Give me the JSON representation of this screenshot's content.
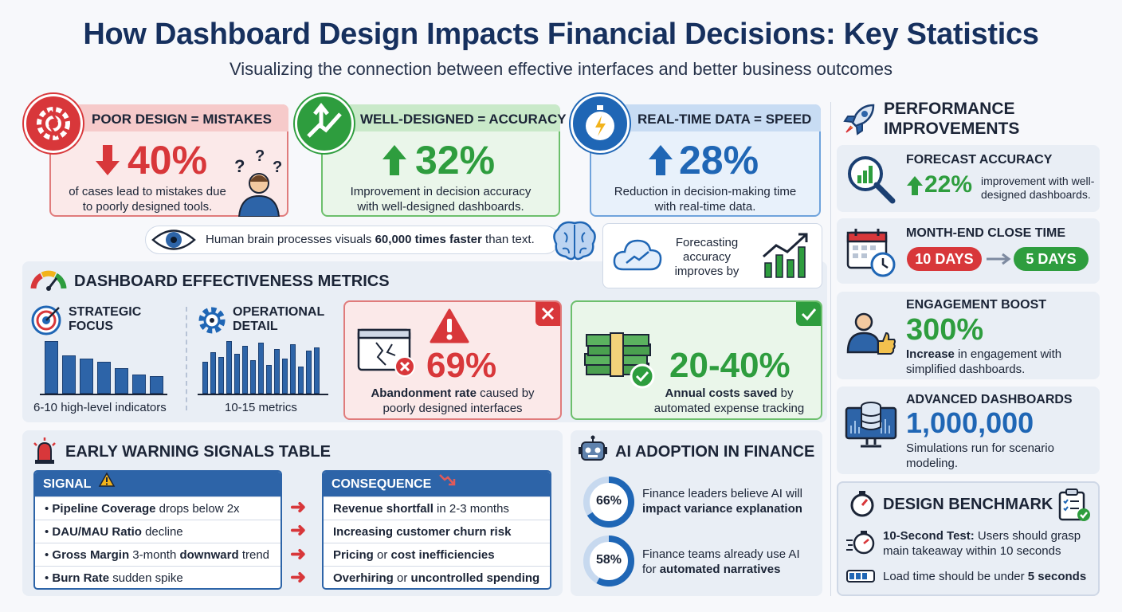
{
  "header": {
    "title": "How Dashboard Design Impacts Financial Decisions: Key Statistics",
    "subtitle": "Visualizing the connection between effective interfaces and better business outcomes"
  },
  "top_cards": [
    {
      "title": "POOR DESIGN = MISTAKES",
      "stat": "40%",
      "direction": "down",
      "text1": "of cases lead to mistakes due",
      "text2": "to poorly designed tools."
    },
    {
      "title": "WELL-DESIGNED = ACCURACY",
      "stat": "32%",
      "direction": "up",
      "text1": "Improvement in decision accuracy",
      "text2": "with well-designed dashboards."
    },
    {
      "title": "REAL-TIME DATA = SPEED",
      "stat": "28%",
      "direction": "up",
      "text1": "Reduction in decision-making time",
      "text2": "with real-time data."
    }
  ],
  "brain_banner": {
    "prefix": "Human brain processes visuals ",
    "emphasis": "60,000 times faster",
    "suffix": " than text."
  },
  "forecast_box": {
    "line1": "Forecasting",
    "line2": "accuracy",
    "line3": "improves by"
  },
  "metrics": {
    "title": "DASHBOARD EFFECTIVENESS METRICS",
    "strategic": {
      "label1": "STRATEGIC",
      "label2": "FOCUS",
      "caption": "6-10 high-level indicators",
      "bars": [
        66,
        48,
        44,
        40,
        32,
        24,
        22
      ]
    },
    "operational": {
      "label1": "OPERATIONAL",
      "label2": "DETAIL",
      "caption": "10-15 metrics",
      "bars": [
        40,
        52,
        46,
        66,
        50,
        60,
        42,
        64,
        36,
        56,
        44,
        62,
        34,
        54,
        58
      ]
    },
    "abandonment": {
      "stat": "69%",
      "emphasis": "Abandonment rate",
      "text1_suffix": " caused by",
      "text2": "poorly designed interfaces"
    },
    "savings": {
      "stat": "20-40%",
      "emphasis": "Annual costs saved",
      "text1_suffix": " by",
      "text2": "automated expense tracking"
    }
  },
  "warning": {
    "title": "EARLY WARNING SIGNALS TABLE",
    "signal_header": "SIGNAL",
    "consequence_header": "CONSEQUENCE",
    "signals": [
      {
        "bold": "Pipeline Coverage",
        "rest": " drops below 2x"
      },
      {
        "bold": "DAU/MAU Ratio",
        "rest": " decline"
      },
      {
        "bold": "Gross Margin",
        "rest": " 3-month ",
        "bold2": "downward",
        "rest2": " trend"
      },
      {
        "bold": "Burn Rate",
        "rest": " sudden spike"
      }
    ],
    "consequences": [
      {
        "bold": "Revenue shortfall",
        "rest": " in 2-3 months"
      },
      {
        "bold": "Increasing customer churn risk",
        "rest": ""
      },
      {
        "bold": "Pricing",
        "rest": " or ",
        "bold2": "cost inefficiencies",
        "rest2": ""
      },
      {
        "bold": "Overhiring",
        "rest": " or ",
        "bold2": "uncontrolled spending",
        "rest2": ""
      }
    ]
  },
  "ai": {
    "title": "AI ADOPTION IN FINANCE",
    "items": [
      {
        "pct": "66%",
        "value": 66,
        "text1": "Finance leaders believe AI will",
        "bold": "impact variance explanation"
      },
      {
        "pct": "58%",
        "value": 58,
        "text1": "Finance teams already use AI",
        "prefix2": "for ",
        "bold": "automated narratives"
      }
    ]
  },
  "performance": {
    "title1": "PERFORMANCE",
    "title2": "IMPROVEMENTS",
    "forecast": {
      "label": "FORECAST ACCURACY",
      "stat": "22%",
      "text1": "improvement with well-",
      "text2": "designed dashboards."
    },
    "close_time": {
      "label": "MONTH-END CLOSE TIME",
      "from": "10 DAYS",
      "to": "5 DAYS"
    },
    "engagement": {
      "label": "ENGAGEMENT BOOST",
      "stat": "300%",
      "bold": "Increase",
      "text1": " in engagement with",
      "text2": "simplified dashboards."
    },
    "advanced": {
      "label": "ADVANCED DASHBOARDS",
      "stat": "1,000,000",
      "text1": "Simulations run for scenario",
      "text2": "modeling."
    }
  },
  "benchmark": {
    "title": "DESIGN BENCHMARK",
    "test_bold": "10-Second Test:",
    "test_text1": " Users should grasp",
    "test_text2": "main takeaway within 10 seconds",
    "load_text": "Load time should be under ",
    "load_bold": "5 seconds"
  },
  "colors": {
    "red": "#e03a3a",
    "green": "#2e9d3e",
    "blue": "#1f66b5",
    "navy": "#16305e"
  }
}
